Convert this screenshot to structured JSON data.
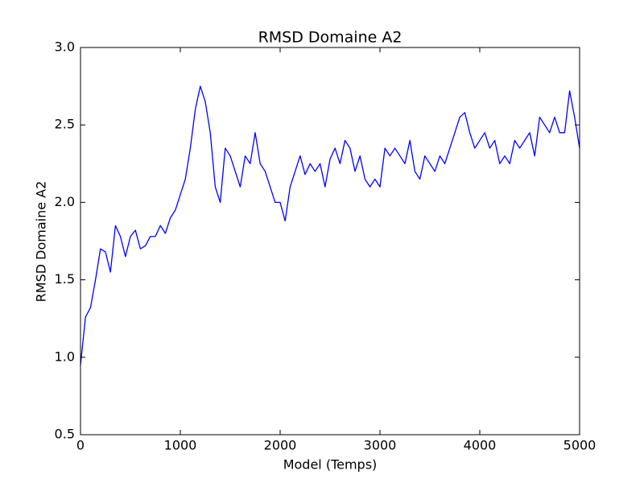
{
  "chart_data": {
    "type": "line",
    "title": "RMSD Domaine A2",
    "xlabel": "Model (Temps)",
    "ylabel": "RMSD Domaine A2",
    "color": "#0000ff",
    "x": [
      0,
      50,
      100,
      150,
      200,
      250,
      300,
      350,
      400,
      450,
      500,
      550,
      600,
      650,
      700,
      750,
      800,
      850,
      900,
      950,
      1000,
      1050,
      1100,
      1150,
      1200,
      1250,
      1300,
      1350,
      1400,
      1450,
      1500,
      1550,
      1600,
      1650,
      1700,
      1750,
      1800,
      1850,
      1900,
      1950,
      2000,
      2050,
      2100,
      2150,
      2200,
      2250,
      2300,
      2350,
      2400,
      2450,
      2500,
      2550,
      2600,
      2650,
      2700,
      2750,
      2800,
      2850,
      2900,
      2950,
      3000,
      3050,
      3100,
      3150,
      3200,
      3250,
      3300,
      3350,
      3400,
      3450,
      3500,
      3550,
      3600,
      3650,
      3700,
      3750,
      3800,
      3850,
      3900,
      3950,
      4000,
      4050,
      4100,
      4150,
      4200,
      4250,
      4300,
      4350,
      4400,
      4450,
      4500,
      4550,
      4600,
      4650,
      4700,
      4750,
      4800,
      4850,
      4900,
      4950,
      5000
    ],
    "values": [
      0.95,
      1.26,
      1.32,
      1.5,
      1.7,
      1.68,
      1.55,
      1.85,
      1.78,
      1.65,
      1.78,
      1.82,
      1.7,
      1.72,
      1.78,
      1.78,
      1.85,
      1.8,
      1.9,
      1.95,
      2.05,
      2.15,
      2.35,
      2.6,
      2.75,
      2.65,
      2.45,
      2.1,
      2.0,
      2.35,
      2.3,
      2.2,
      2.1,
      2.3,
      2.25,
      2.45,
      2.25,
      2.2,
      2.1,
      2.0,
      2.0,
      1.88,
      2.1,
      2.2,
      2.3,
      2.18,
      2.25,
      2.2,
      2.25,
      2.1,
      2.28,
      2.35,
      2.25,
      2.4,
      2.35,
      2.2,
      2.3,
      2.15,
      2.1,
      2.15,
      2.1,
      2.35,
      2.3,
      2.35,
      2.3,
      2.25,
      2.4,
      2.2,
      2.15,
      2.3,
      2.25,
      2.2,
      2.3,
      2.25,
      2.35,
      2.45,
      2.55,
      2.58,
      2.45,
      2.35,
      2.4,
      2.45,
      2.35,
      2.4,
      2.25,
      2.3,
      2.25,
      2.4,
      2.35,
      2.4,
      2.45,
      2.3,
      2.55,
      2.5,
      2.45,
      2.55,
      2.45,
      2.45,
      2.72,
      2.55,
      2.35
    ],
    "xlim": [
      0,
      5000
    ],
    "xticks": [
      0,
      1000,
      2000,
      3000,
      4000,
      5000
    ],
    "ylim": [
      0.5,
      3.0
    ],
    "yticks": [
      0.5,
      {
        "value": 1.0,
        "label": "1.0"
      },
      1.5,
      {
        "value": 2.0,
        "label": "2.0"
      },
      2.5,
      {
        "value": 3.0,
        "label": "3.0"
      }
    ],
    "grid": false
  }
}
